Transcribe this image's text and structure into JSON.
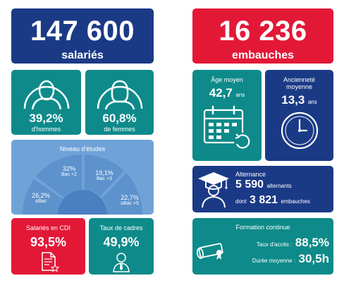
{
  "salaries": {
    "value": "147 600",
    "label": "salariés"
  },
  "embauches": {
    "value": "16 236",
    "label": "embauches"
  },
  "hommes": {
    "value": "39,2%",
    "label": "d'hommes"
  },
  "femmes": {
    "value": "60,8%",
    "label": "de femmes"
  },
  "etudes": {
    "title": "Niveau d'études",
    "segments": [
      {
        "value": "26,2%",
        "label": "≤Bac"
      },
      {
        "value": "32%",
        "label": "Bac +2"
      },
      {
        "value": "19,1%",
        "label": "Bac +3"
      },
      {
        "value": "22,7%",
        "label": "≥Bac +5"
      }
    ]
  },
  "cdi": {
    "label": "Salariés en CDI",
    "value": "93,5%"
  },
  "cadres": {
    "label": "Taux de cadres",
    "value": "49,9%"
  },
  "age": {
    "label": "Âge moyen",
    "value": "42,7",
    "unit": "ans"
  },
  "anciennete": {
    "label_line1": "Ancienneté",
    "label_line2": "moyenne",
    "value": "13,3",
    "unit": "ans"
  },
  "alternance": {
    "title": "Alternance",
    "value": "5 590",
    "value_label": "alternants",
    "prefix": "dont",
    "sub_value": "3 821",
    "sub_label": "embauches"
  },
  "formation": {
    "title": "Formation continue",
    "acces_label": "Taux d'accès :",
    "acces_value": "88,5%",
    "duree_label": "Durée moyenne :",
    "duree_value": "30,5h"
  },
  "colors": {
    "navy": "#1b3a86",
    "red": "#e31837",
    "teal": "#0e8a8a",
    "lightblue": "#6fa3d8"
  }
}
